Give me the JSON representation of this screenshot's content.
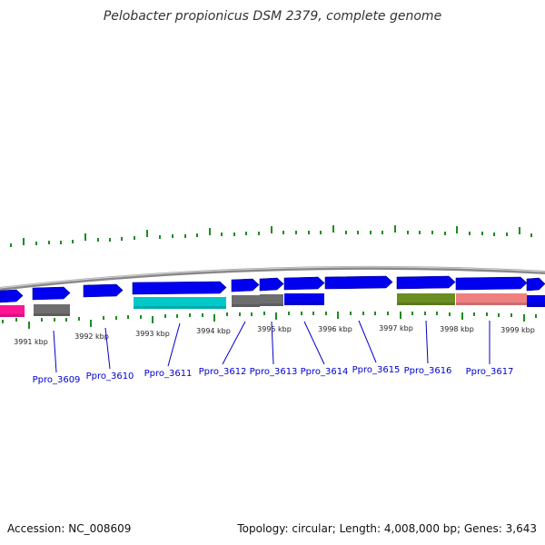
{
  "title": "Pelobacter propionicus DSM 2379, complete genome",
  "footer": {
    "accession": "Accession: NC_008609",
    "summary": "Topology: circular; Length: 4,008,000 bp; Genes: 3,643"
  },
  "colors": {
    "backbone": "#888888",
    "gene_forward": "#0000ee",
    "gc_tick": "#1e8c1e",
    "cog_cyan": "#00c8c8",
    "cog_grey": "#6e6e6e",
    "cog_olive": "#6b8e23",
    "cog_salmon": "#f08080",
    "cog_magenta": "#ff1493",
    "label": "#0000cc"
  },
  "scale_ticks": [
    "3991 kbp",
    "3992 kbp",
    "3993 kbp",
    "3994 kbp",
    "3995 kbp",
    "3996 kbp",
    "3997 kbp",
    "3998 kbp",
    "3999 kbp"
  ],
  "gene_labels": [
    "Ppro_3609",
    "Ppro_3610",
    "Ppro_3611",
    "Ppro_3612",
    "Ppro_3613",
    "Ppro_3614",
    "Ppro_3615",
    "Ppro_3616",
    "Ppro_3617"
  ]
}
